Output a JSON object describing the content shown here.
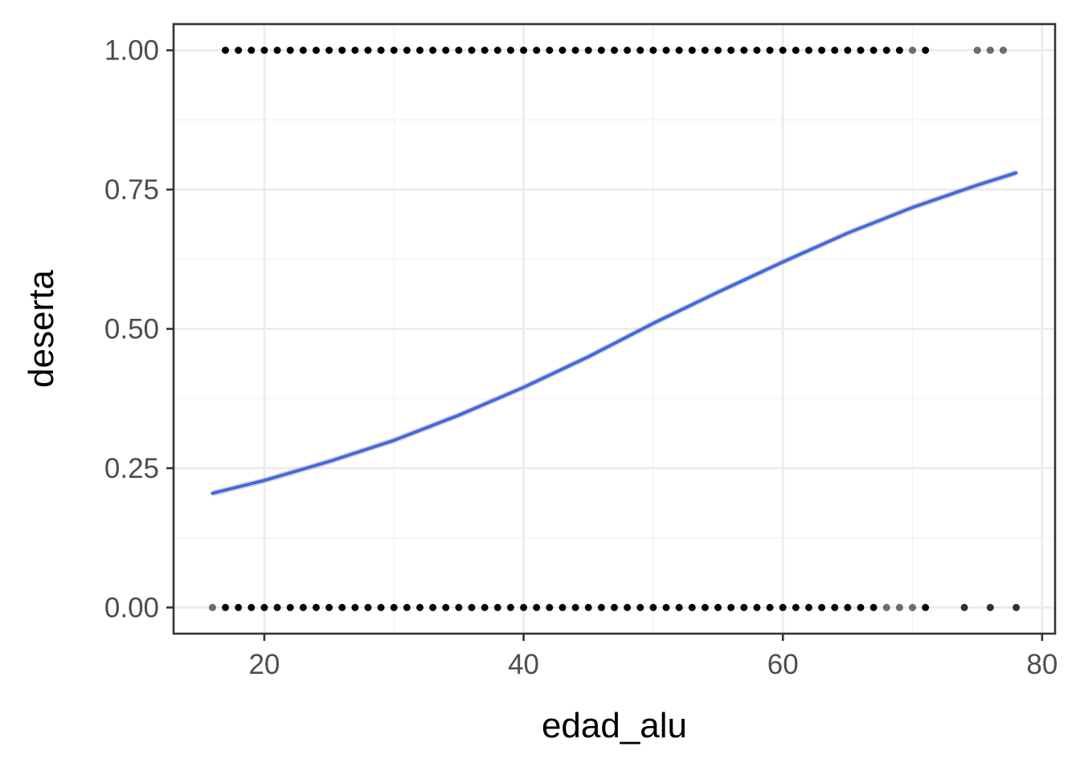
{
  "chart_data": {
    "type": "scatter",
    "title": "",
    "xlabel": "edad_alu",
    "ylabel": "deserta",
    "xlim": [
      13,
      81
    ],
    "ylim": [
      -0.047,
      1.047
    ],
    "x_ticks": [
      20,
      40,
      60,
      80
    ],
    "y_ticks": [
      0.0,
      0.25,
      0.5,
      0.75,
      1.0
    ],
    "x_tick_labels": [
      "20",
      "40",
      "60",
      "80"
    ],
    "y_tick_labels": [
      "0.00",
      "0.25",
      "0.50",
      "0.75",
      "1.00"
    ],
    "grid": true,
    "legend": "none",
    "series": [
      {
        "kind": "points",
        "y": 1,
        "x": [
          17,
          18,
          19,
          20,
          21,
          22,
          23,
          24,
          25,
          26,
          27,
          28,
          29,
          30,
          31,
          32,
          33,
          34,
          35,
          36,
          37,
          38,
          39,
          40,
          41,
          42,
          43,
          44,
          45,
          46,
          47,
          48,
          49,
          50,
          51,
          52,
          53,
          54,
          55,
          56,
          57,
          58,
          59,
          60,
          61,
          62,
          63,
          64,
          65,
          66,
          67,
          68,
          69,
          70,
          71,
          75,
          76,
          77
        ],
        "opacity": [
          1,
          1,
          1,
          1,
          1,
          1,
          1,
          1,
          1,
          1,
          1,
          1,
          1,
          1,
          1,
          1,
          1,
          1,
          1,
          1,
          1,
          1,
          1,
          1,
          1,
          1,
          1,
          1,
          1,
          1,
          1,
          1,
          1,
          1,
          1,
          1,
          1,
          1,
          1,
          1,
          1,
          1,
          1,
          1,
          1,
          1,
          1,
          1,
          1,
          1,
          1,
          1,
          1,
          0.55,
          1,
          0.55,
          0.55,
          0.55
        ]
      },
      {
        "kind": "points",
        "y": 0,
        "x": [
          16,
          17,
          18,
          19,
          20,
          21,
          22,
          23,
          24,
          25,
          26,
          27,
          28,
          29,
          30,
          31,
          32,
          33,
          34,
          35,
          36,
          37,
          38,
          39,
          40,
          41,
          42,
          43,
          44,
          45,
          46,
          47,
          48,
          49,
          50,
          51,
          52,
          53,
          54,
          55,
          56,
          57,
          58,
          59,
          60,
          61,
          62,
          63,
          64,
          65,
          66,
          67,
          68,
          69,
          70,
          71,
          74,
          76,
          78
        ],
        "opacity": [
          0.55,
          1,
          1,
          1,
          1,
          1,
          1,
          1,
          1,
          1,
          1,
          1,
          1,
          1,
          1,
          1,
          1,
          1,
          1,
          1,
          1,
          1,
          1,
          1,
          1,
          1,
          1,
          1,
          1,
          1,
          1,
          1,
          1,
          1,
          1,
          1,
          1,
          1,
          1,
          1,
          1,
          1,
          1,
          1,
          1,
          1,
          1,
          1,
          1,
          1,
          1,
          1,
          0.55,
          0.55,
          0.55,
          1,
          0.8,
          0.8,
          0.8
        ]
      },
      {
        "kind": "smooth-line",
        "color": "#4169e1",
        "x": [
          16,
          20,
          25,
          30,
          35,
          40,
          45,
          50,
          55,
          60,
          65,
          70,
          75,
          78
        ],
        "y": [
          0.205,
          0.228,
          0.262,
          0.3,
          0.345,
          0.395,
          0.45,
          0.51,
          0.566,
          0.62,
          0.672,
          0.718,
          0.758,
          0.78
        ]
      }
    ]
  },
  "colors": {
    "background": "#ffffff",
    "panel_border": "#333333",
    "grid_major": "#ebebeb",
    "grid_minor": "#f3f3f3",
    "points": "#000000",
    "line": "#4169e1",
    "ribbon": "#999999"
  }
}
